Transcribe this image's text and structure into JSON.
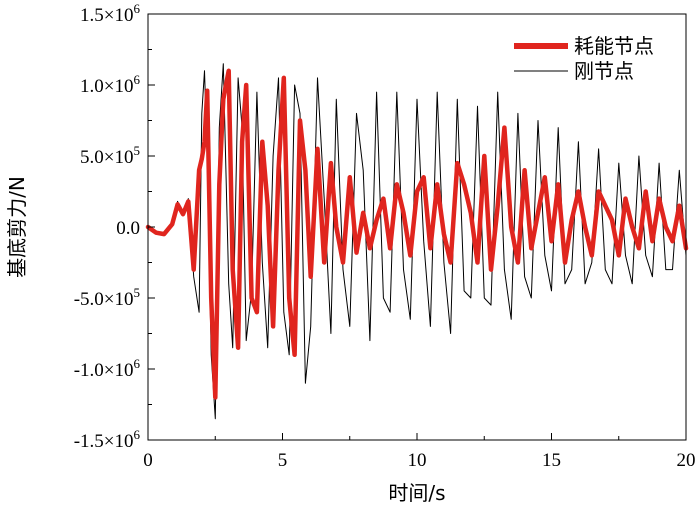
{
  "chart_data": {
    "type": "line",
    "title": "",
    "xlabel": "时间/s",
    "ylabel": "基底剪力/N",
    "xlim": [
      0,
      20
    ],
    "ylim": [
      -1500000,
      1500000
    ],
    "x_ticks": [
      {
        "value": 0,
        "label": "0"
      },
      {
        "value": 5,
        "label": "5"
      },
      {
        "value": 10,
        "label": "10"
      },
      {
        "value": 15,
        "label": "15"
      },
      {
        "value": 20,
        "label": "20"
      }
    ],
    "y_ticks": [
      {
        "value": 1500000,
        "mant": "1.5×10",
        "exp": "6"
      },
      {
        "value": 1000000,
        "mant": "1.0×10",
        "exp": "6"
      },
      {
        "value": 500000,
        "mant": "5.0×10",
        "exp": "5"
      },
      {
        "value": 0,
        "mant": "0.0",
        "exp": ""
      },
      {
        "value": -500000,
        "mant": "-5.0×10",
        "exp": "5"
      },
      {
        "value": -1000000,
        "mant": "-1.0×10",
        "exp": "6"
      },
      {
        "value": -1500000,
        "mant": "-1.5×10",
        "exp": "6"
      }
    ],
    "grid": false,
    "legend_position": "top-right",
    "series": [
      {
        "name": "耗能节点",
        "color": "#e0251e",
        "x": [
          0,
          0.3,
          0.6,
          0.9,
          1.1,
          1.3,
          1.5,
          1.7,
          1.9,
          2.0,
          2.1,
          2.2,
          2.35,
          2.5,
          2.65,
          2.8,
          3.0,
          3.15,
          3.35,
          3.5,
          3.65,
          3.85,
          4.05,
          4.25,
          4.45,
          4.65,
          4.85,
          5.05,
          5.25,
          5.45,
          5.65,
          5.85,
          6.05,
          6.3,
          6.55,
          6.8,
          7.0,
          7.25,
          7.5,
          7.75,
          8.0,
          8.25,
          8.5,
          8.75,
          9.0,
          9.25,
          9.5,
          9.75,
          10.0,
          10.25,
          10.5,
          10.75,
          11.0,
          11.25,
          11.5,
          11.75,
          12.0,
          12.25,
          12.5,
          12.75,
          13.0,
          13.25,
          13.5,
          13.75,
          14.0,
          14.25,
          14.5,
          14.75,
          15.0,
          15.25,
          15.5,
          15.75,
          16.0,
          16.25,
          16.5,
          16.75,
          17.0,
          17.25,
          17.5,
          17.75,
          18.0,
          18.25,
          18.5,
          18.75,
          19.0,
          19.25,
          19.5,
          19.75,
          20.0
        ],
        "y": [
          0,
          -40000,
          -50000,
          20000,
          160000,
          90000,
          180000,
          -300000,
          400000,
          480000,
          600000,
          960000,
          -500000,
          -1200000,
          300000,
          900000,
          1100000,
          -300000,
          -850000,
          600000,
          1000000,
          -500000,
          -600000,
          600000,
          150000,
          -700000,
          400000,
          1050000,
          -500000,
          -900000,
          750000,
          400000,
          -350000,
          550000,
          -250000,
          450000,
          0,
          -250000,
          350000,
          -180000,
          100000,
          -150000,
          50000,
          200000,
          -150000,
          300000,
          100000,
          -200000,
          250000,
          350000,
          -150000,
          300000,
          -50000,
          -250000,
          450000,
          300000,
          100000,
          -250000,
          500000,
          -300000,
          150000,
          700000,
          0,
          -250000,
          400000,
          -150000,
          100000,
          350000,
          -100000,
          300000,
          -250000,
          50000,
          250000,
          0,
          -200000,
          250000,
          150000,
          50000,
          -200000,
          200000,
          0,
          -150000,
          250000,
          -100000,
          200000,
          0,
          -100000,
          150000,
          -150000
        ]
      },
      {
        "name": "刚节点",
        "color": "#000000",
        "x": [
          0,
          0.3,
          0.6,
          0.9,
          1.1,
          1.3,
          1.5,
          1.7,
          1.9,
          2.0,
          2.1,
          2.2,
          2.35,
          2.5,
          2.65,
          2.8,
          3.0,
          3.15,
          3.35,
          3.5,
          3.65,
          3.85,
          4.05,
          4.25,
          4.45,
          4.65,
          4.85,
          5.05,
          5.25,
          5.45,
          5.65,
          5.85,
          6.05,
          6.3,
          6.55,
          6.8,
          7.0,
          7.25,
          7.5,
          7.75,
          8.0,
          8.25,
          8.5,
          8.75,
          9.0,
          9.25,
          9.5,
          9.75,
          10.0,
          10.25,
          10.5,
          10.75,
          11.0,
          11.25,
          11.5,
          11.75,
          12.0,
          12.25,
          12.5,
          12.75,
          13.0,
          13.25,
          13.5,
          13.75,
          14.0,
          14.25,
          14.5,
          14.75,
          15.0,
          15.25,
          15.5,
          15.75,
          16.0,
          16.25,
          16.5,
          16.75,
          17.0,
          17.25,
          17.5,
          17.75,
          18.0,
          18.25,
          18.5,
          18.75,
          19.0,
          19.25,
          19.5,
          19.75,
          20.0
        ],
        "y": [
          0,
          -50000,
          -60000,
          30000,
          180000,
          80000,
          200000,
          -350000,
          -600000,
          800000,
          1100000,
          500000,
          -900000,
          -1350000,
          700000,
          1150000,
          -400000,
          -850000,
          1050000,
          700000,
          -800000,
          -450000,
          950000,
          -250000,
          -850000,
          500000,
          1050000,
          -600000,
          -900000,
          1000000,
          800000,
          -1100000,
          -700000,
          1050000,
          200000,
          -750000,
          900000,
          -300000,
          -700000,
          800000,
          400000,
          -800000,
          950000,
          -500000,
          -600000,
          950000,
          -300000,
          -650000,
          900000,
          -100000,
          -700000,
          950000,
          -250000,
          -750000,
          900000,
          -450000,
          -500000,
          850000,
          -500000,
          -550000,
          950000,
          -300000,
          -650000,
          800000,
          -350000,
          -500000,
          750000,
          -200000,
          -450000,
          700000,
          -400000,
          -300000,
          600000,
          -400000,
          -250000,
          550000,
          -300000,
          -400000,
          450000,
          -200000,
          -400000,
          500000,
          -200000,
          -350000,
          450000,
          -300000,
          -300000,
          400000,
          -200000
        ]
      }
    ]
  }
}
